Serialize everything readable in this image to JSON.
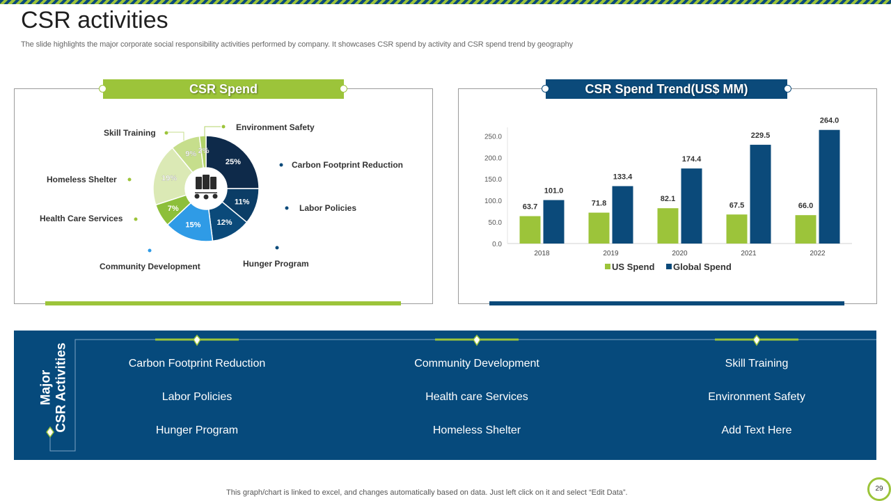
{
  "slide": {
    "title": "CSR activities",
    "subtitle": "The slide highlights the major corporate social responsibility activities performed by company. It showcases CSR spend by activity  and CSR spend trend by geography",
    "footer_note": "This graph/chart is linked to excel,  and changes automatically based on data. Just left click on it and select “Edit Data”.",
    "page_number": "29"
  },
  "panels": {
    "left_title": "CSR Spend",
    "right_title": "CSR Spend Trend(US$ MM)"
  },
  "colors": {
    "green": "#9cc43a",
    "navy": "#0b4a7a",
    "dark_navy": "#0e2a4a",
    "blue": "#2f9be6"
  },
  "center_icon": "server-network-icon",
  "chart_data": [
    {
      "type": "pie",
      "title": "CSR Spend",
      "slices": [
        {
          "label": "Carbon Footprint Reduction",
          "value": 25,
          "display": "25%",
          "color": "#0e2a4a"
        },
        {
          "label": "Labor Policies",
          "value": 11,
          "display": "11%",
          "color": "#0b3d66"
        },
        {
          "label": "Hunger Program",
          "value": 12,
          "display": "12%",
          "color": "#0b4a7a"
        },
        {
          "label": "Community Development",
          "value": 15,
          "display": "15%",
          "color": "#2f9be6"
        },
        {
          "label": "Health Care Services",
          "value": 7,
          "display": "7%",
          "color": "#8dbf3a"
        },
        {
          "label": "Homeless Shelter",
          "value": 19,
          "display": "19%",
          "color": "#dbe9b5"
        },
        {
          "label": "Skill Training",
          "value": 9,
          "display": "9%",
          "color": "#c6de8c"
        },
        {
          "label": "Environment Safety",
          "value": 2,
          "display": "2%",
          "color": "#b3d36a"
        }
      ]
    },
    {
      "type": "bar",
      "title": "CSR Spend Trend(US$ MM)",
      "categories": [
        "2018",
        "2019",
        "2020",
        "2021",
        "2022"
      ],
      "series": [
        {
          "name": "US Spend",
          "values": [
            63.7,
            71.8,
            82.1,
            67.5,
            66.0
          ],
          "labels": [
            "63.7",
            "71.8",
            "82.1",
            "67.5",
            "66.0"
          ],
          "color": "#9cc43a"
        },
        {
          "name": "Global Spend",
          "values": [
            101.0,
            133.4,
            174.4,
            229.5,
            264.0
          ],
          "labels": [
            "101.0",
            "133.4",
            "174.4",
            "229.5",
            "264.0"
          ],
          "color": "#0b4a7a"
        }
      ],
      "ylim": [
        0,
        270
      ],
      "yticks": [
        "0.0",
        "50.0",
        "100.0",
        "150.0",
        "200.0",
        "250.0"
      ],
      "legend": "bottom"
    }
  ],
  "activities": {
    "heading_line1": "Major",
    "heading_line2": "CSR Activities",
    "columns": [
      [
        "Carbon Footprint Reduction",
        "Labor Policies",
        "Hunger Program"
      ],
      [
        "Community Development",
        "Health care Services",
        "Homeless Shelter"
      ],
      [
        "Skill Training",
        "Environment Safety",
        "Add Text Here"
      ]
    ]
  }
}
